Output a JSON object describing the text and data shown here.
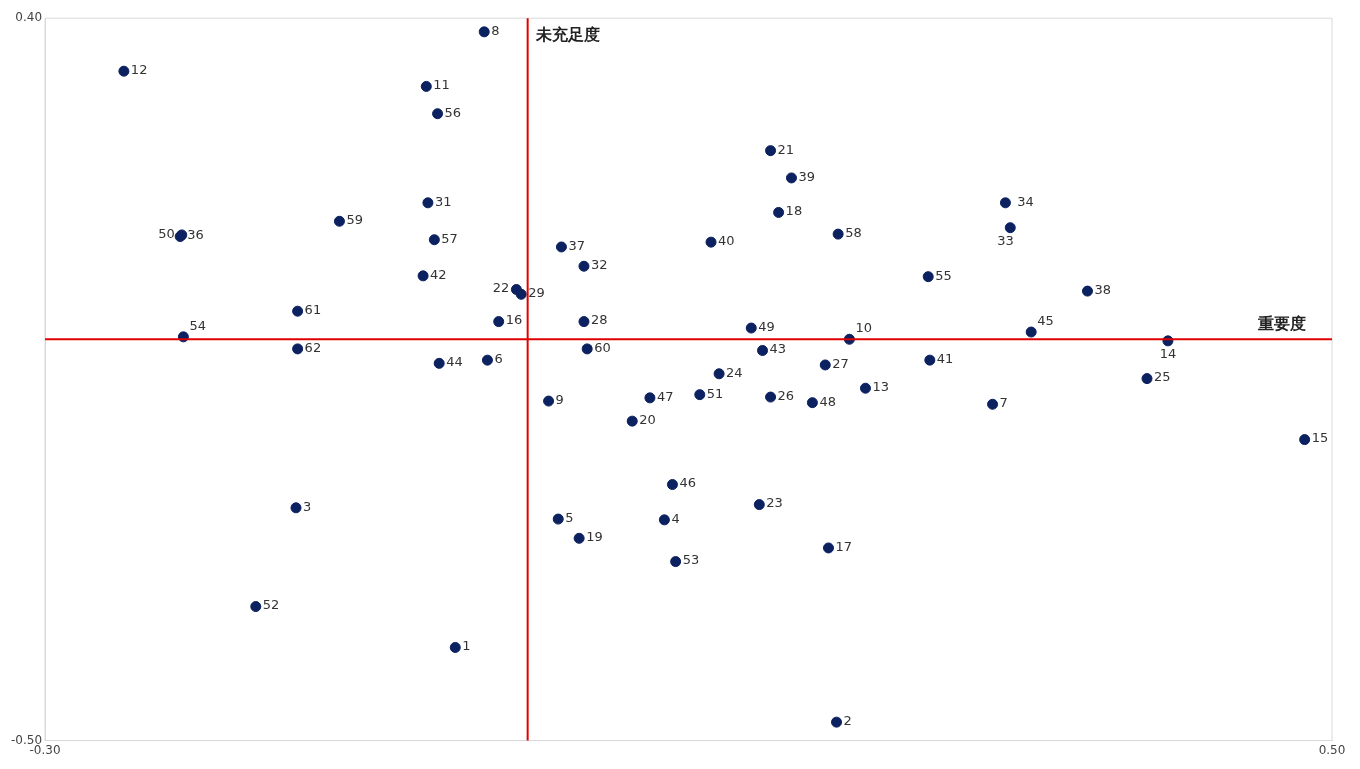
{
  "chart_data": {
    "type": "scatter",
    "marker": "circle",
    "grid": false,
    "series": [
      {
        "color": "#0b2160",
        "x": [
          -0.045,
          0.192,
          -0.144,
          0.085,
          0.019,
          -0.025,
          0.289,
          -0.027,
          0.013,
          0.2,
          -0.063,
          -0.251,
          0.21,
          0.398,
          0.483,
          -0.018,
          0.187,
          0.156,
          0.032,
          0.065,
          0.151,
          -0.007,
          0.144,
          0.119,
          0.385,
          0.151,
          0.185,
          0.035,
          -0.004,
          -0.062,
          0.035,
          0.3,
          0.297,
          -0.216,
          0.021,
          0.348,
          0.164,
          0.114,
          0.25,
          -0.065,
          0.146,
          -0.055,
          0.313,
          0.09,
          0.076,
          0.177,
          0.139,
          -0.215,
          0.107,
          -0.169,
          0.092,
          -0.214,
          0.249,
          -0.056,
          -0.058,
          0.193,
          -0.117,
          0.037,
          -0.143,
          -0.143
        ],
        "values": [
          -0.384,
          -0.477,
          -0.21,
          -0.225,
          -0.224,
          -0.026,
          -0.081,
          0.383,
          -0.077,
          0.0,
          0.315,
          0.334,
          -0.061,
          -0.002,
          -0.125,
          0.022,
          -0.26,
          0.158,
          -0.248,
          -0.102,
          0.235,
          0.062,
          -0.206,
          -0.043,
          -0.049,
          -0.072,
          -0.032,
          0.022,
          0.056,
          0.17,
          0.091,
          0.139,
          0.17,
          0.128,
          0.115,
          0.06,
          0.201,
          0.121,
          -0.026,
          0.079,
          -0.014,
          -0.03,
          0.009,
          -0.181,
          -0.073,
          -0.079,
          0.014,
          0.13,
          -0.069,
          -0.333,
          -0.277,
          0.003,
          0.078,
          0.281,
          0.124,
          0.131,
          0.147,
          -0.012,
          0.035,
          -0.012
        ]
      }
    ],
    "xlim": [
      -0.3,
      0.5
    ],
    "xticks": [
      {
        "value": -0.3,
        "label": "-0.30"
      },
      {
        "value": 0.5,
        "label": "0.50"
      }
    ],
    "ylim": [
      -0.5,
      0.4
    ],
    "yticks": [
      {
        "value": -0.5,
        "label": "-0.50"
      },
      {
        "value": 0.4,
        "label": "0.40"
      }
    ],
    "ref_lines": [
      {
        "axis": "x",
        "value": 0,
        "label": "未充足度",
        "color": "#e00000"
      },
      {
        "axis": "y",
        "value": 0,
        "label": "重要度",
        "color": "#e00000"
      }
    ],
    "annotations": [
      {
        "text": "1",
        "x": -0.045,
        "y": -0.384
      },
      {
        "text": "2",
        "x": 0.192,
        "y": -0.477
      },
      {
        "text": "3",
        "x": -0.144,
        "y": -0.21
      },
      {
        "text": "4",
        "x": 0.085,
        "y": -0.225
      },
      {
        "text": "5",
        "x": 0.019,
        "y": -0.224
      },
      {
        "text": "6",
        "x": -0.025,
        "y": -0.026
      },
      {
        "text": "7",
        "x": 0.289,
        "y": -0.081
      },
      {
        "text": "8",
        "x": -0.027,
        "y": 0.383
      },
      {
        "text": "9",
        "x": 0.013,
        "y": -0.077
      },
      {
        "text": "10",
        "x": 0.2,
        "y": 0
      },
      {
        "text": "11",
        "x": -0.063,
        "y": 0.315
      },
      {
        "text": "12",
        "x": -0.251,
        "y": 0.334
      },
      {
        "text": "13",
        "x": 0.21,
        "y": -0.061
      },
      {
        "text": "14",
        "x": 0.398,
        "y": -0.002
      },
      {
        "text": "15",
        "x": 0.483,
        "y": -0.125
      },
      {
        "text": "16",
        "x": -0.018,
        "y": 0.022
      },
      {
        "text": "17",
        "x": 0.187,
        "y": -0.26
      },
      {
        "text": "18",
        "x": 0.156,
        "y": 0.158
      },
      {
        "text": "19",
        "x": 0.032,
        "y": -0.248
      },
      {
        "text": "20",
        "x": 0.065,
        "y": -0.102
      },
      {
        "text": "21",
        "x": 0.151,
        "y": 0.235
      },
      {
        "text": "22",
        "x": -0.007,
        "y": 0.062
      },
      {
        "text": "23",
        "x": 0.144,
        "y": -0.206
      },
      {
        "text": "24",
        "x": 0.119,
        "y": -0.043
      },
      {
        "text": "25",
        "x": 0.385,
        "y": -0.049
      },
      {
        "text": "26",
        "x": 0.151,
        "y": -0.072
      },
      {
        "text": "27",
        "x": 0.185,
        "y": -0.032
      },
      {
        "text": "28",
        "x": 0.035,
        "y": 0.022
      },
      {
        "text": "29",
        "x": -0.004,
        "y": 0.056
      },
      {
        "text": "31",
        "x": -0.062,
        "y": 0.17
      },
      {
        "text": "32",
        "x": 0.035,
        "y": 0.091
      },
      {
        "text": "33",
        "x": 0.297,
        "y": 0.139
      },
      {
        "text": "34",
        "x": 0.3,
        "y": 0.17
      },
      {
        "text": "36",
        "x": -0.216,
        "y": 0.128
      },
      {
        "text": "37",
        "x": 0.021,
        "y": 0.115
      },
      {
        "text": "38",
        "x": 0.348,
        "y": 0.06
      },
      {
        "text": "39",
        "x": 0.164,
        "y": 0.201
      },
      {
        "text": "40",
        "x": 0.114,
        "y": 0.121
      },
      {
        "text": "41",
        "x": 0.25,
        "y": -0.026
      },
      {
        "text": "42",
        "x": -0.065,
        "y": 0.079
      },
      {
        "text": "43",
        "x": 0.146,
        "y": -0.014
      },
      {
        "text": "44",
        "x": -0.055,
        "y": -0.03
      },
      {
        "text": "45",
        "x": 0.313,
        "y": 0.009
      },
      {
        "text": "46",
        "x": 0.09,
        "y": -0.181
      },
      {
        "text": "47",
        "x": 0.076,
        "y": -0.073
      },
      {
        "text": "48",
        "x": 0.177,
        "y": -0.079
      },
      {
        "text": "49",
        "x": 0.139,
        "y": 0.014
      },
      {
        "text": "50",
        "x": -0.215,
        "y": 0.13
      },
      {
        "text": "51",
        "x": 0.107,
        "y": -0.069
      },
      {
        "text": "52",
        "x": -0.169,
        "y": -0.333
      },
      {
        "text": "53",
        "x": 0.092,
        "y": -0.277
      },
      {
        "text": "54",
        "x": -0.214,
        "y": 0.003
      },
      {
        "text": "55",
        "x": 0.249,
        "y": 0.078
      },
      {
        "text": "56",
        "x": -0.056,
        "y": 0.281
      },
      {
        "text": "57",
        "x": -0.058,
        "y": 0.124
      },
      {
        "text": "58",
        "x": 0.193,
        "y": 0.131
      },
      {
        "text": "59",
        "x": -0.117,
        "y": 0.147
      },
      {
        "text": "60",
        "x": 0.037,
        "y": -0.012
      },
      {
        "text": "61",
        "x": -0.143,
        "y": 0.035
      },
      {
        "text": "62",
        "x": -0.143,
        "y": -0.012
      }
    ]
  }
}
